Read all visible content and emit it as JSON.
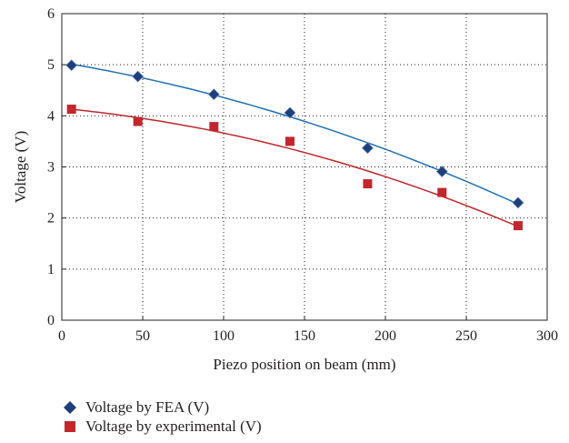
{
  "chart_data": {
    "type": "scatter",
    "xlabel": "Piezo position on beam (mm)",
    "ylabel": "Voltage (V)",
    "xlim": [
      0,
      300
    ],
    "ylim": [
      0,
      6
    ],
    "xticks": [
      "0",
      "50",
      "100",
      "150",
      "200",
      "250",
      "300"
    ],
    "yticks": [
      "0",
      "1",
      "2",
      "3",
      "4",
      "5",
      "6"
    ],
    "grid": "dotted",
    "legend_position": "bottom-left",
    "series": [
      {
        "name": "Voltage by FEA (V)",
        "marker": "diamond",
        "color": "#1f3f7a",
        "trend_color": "#1f6fb5",
        "x": [
          6,
          47,
          94,
          141,
          189,
          235,
          282
        ],
        "y": [
          4.99,
          4.77,
          4.42,
          4.06,
          3.37,
          2.91,
          2.3
        ]
      },
      {
        "name": "Voltage by experimental (V)",
        "marker": "square",
        "color": "#c1272d",
        "trend_color": "#c1272d",
        "x": [
          6,
          47,
          94,
          141,
          189,
          235,
          282
        ],
        "y": [
          4.13,
          3.89,
          3.79,
          3.5,
          2.67,
          2.5,
          1.85
        ]
      }
    ]
  }
}
